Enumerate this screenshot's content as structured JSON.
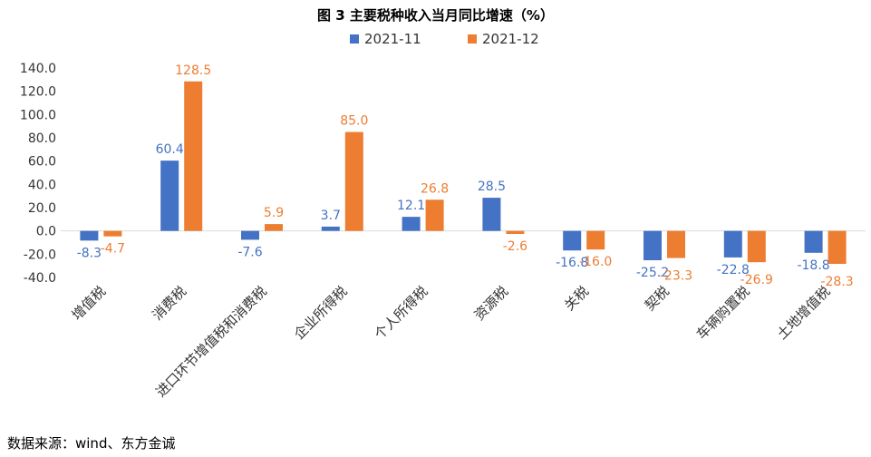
{
  "chart_data": {
    "type": "bar",
    "title": "图 3  主要税种收入当月同比增速（%）",
    "categories": [
      "增值税",
      "消费税",
      "进口环节增值税和消费税",
      "企业所得税",
      "个人所得税",
      "资源税",
      "关税",
      "契税",
      "车辆购置税",
      "土地增值税"
    ],
    "series": [
      {
        "name": "2021-11",
        "color": "#4472C4",
        "values": [
          -8.3,
          60.4,
          -7.6,
          3.7,
          12.1,
          28.5,
          -16.8,
          -25.2,
          -22.8,
          -18.8
        ]
      },
      {
        "name": "2021-12",
        "color": "#ED7D31",
        "values": [
          -4.7,
          128.5,
          5.9,
          85.0,
          26.8,
          -2.6,
          -16.0,
          -23.3,
          -26.9,
          -28.3
        ]
      }
    ],
    "ylim": [
      -40,
      140
    ],
    "yticks": [
      "-40.0",
      "-20.0",
      "0.0",
      "20.0",
      "40.0",
      "60.0",
      "80.0",
      "100.0",
      "120.0",
      "140.0"
    ],
    "legend": "top",
    "grid": false,
    "xlabel": "",
    "ylabel": ""
  },
  "source": "数据来源：wind、东方金诚"
}
